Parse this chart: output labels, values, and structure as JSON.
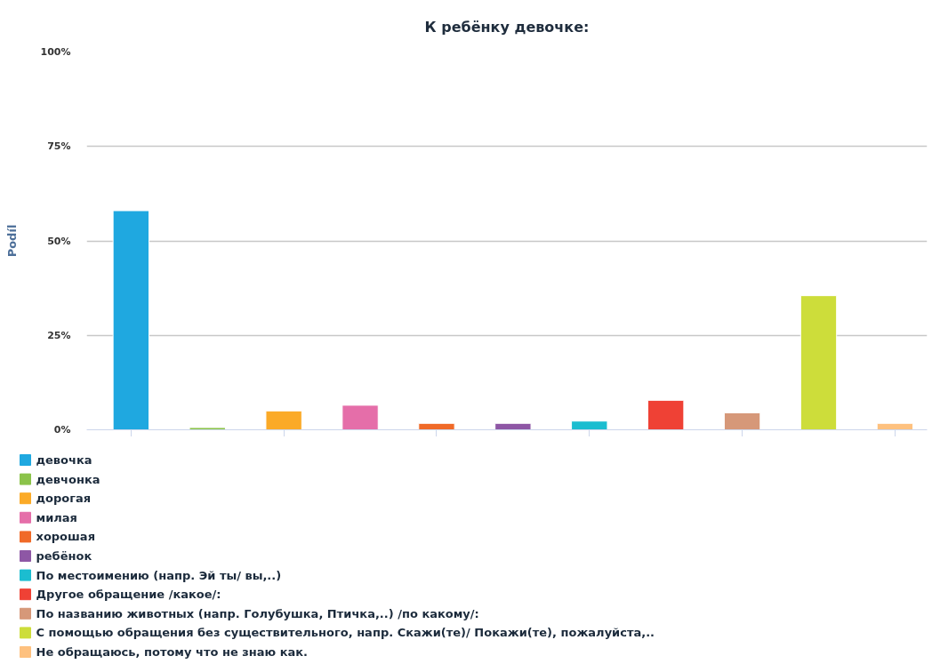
{
  "chart_data": {
    "type": "bar",
    "title": "К ребёнку девочке:",
    "ylabel": "Podíl",
    "categories": [
      null,
      null,
      null,
      null,
      null,
      null,
      null,
      null,
      null,
      null,
      null
    ],
    "ylim": [
      0,
      100
    ],
    "yticks": [
      {
        "value": 0,
        "label": "0%"
      },
      {
        "value": 25,
        "label": "25%"
      },
      {
        "value": 50,
        "label": "50%"
      },
      {
        "value": 75,
        "label": "75%"
      },
      {
        "value": 100,
        "label": "100%"
      }
    ],
    "grid": "y",
    "legend": "bottom",
    "tick_labels": "y",
    "series": [
      {
        "name": "девочка",
        "color": "#1fa8e0",
        "values": [
          58,
          null,
          null,
          null,
          null,
          null,
          null,
          null,
          null,
          null,
          null
        ]
      },
      {
        "name": "девчонка",
        "color": "#8bc34a",
        "values": [
          null,
          0.6,
          null,
          null,
          null,
          null,
          null,
          null,
          null,
          null,
          null
        ]
      },
      {
        "name": "дорогая",
        "color": "#fbaa27",
        "values": [
          null,
          null,
          5,
          null,
          null,
          null,
          null,
          null,
          null,
          null,
          null
        ]
      },
      {
        "name": "милая",
        "color": "#e56ea9",
        "values": [
          null,
          null,
          null,
          6.5,
          null,
          null,
          null,
          null,
          null,
          null,
          null
        ]
      },
      {
        "name": "хорошая",
        "color": "#f06a28",
        "values": [
          null,
          null,
          null,
          null,
          1.7,
          null,
          null,
          null,
          null,
          null,
          null
        ]
      },
      {
        "name": "ребёнок",
        "color": "#8e57a5",
        "values": [
          null,
          null,
          null,
          null,
          null,
          1.7,
          null,
          null,
          null,
          null,
          null
        ]
      },
      {
        "name": "По местоимению (напр. Эй ты/ вы,..)",
        "color": "#1bbdd0",
        "values": [
          null,
          null,
          null,
          null,
          null,
          null,
          2.3,
          null,
          null,
          null,
          null
        ]
      },
      {
        "name": "Другое обращение /какое/:",
        "color": "#ef4135",
        "values": [
          null,
          null,
          null,
          null,
          null,
          null,
          null,
          7.8,
          null,
          null,
          null
        ]
      },
      {
        "name": "По названию животных (напр. Голубушка, Птичка,..) /по какому/:",
        "color": "#d69879",
        "values": [
          null,
          null,
          null,
          null,
          null,
          null,
          null,
          null,
          4.5,
          null,
          null
        ]
      },
      {
        "name": "С помощью обращения без существительного, напр. Скажи(те)/ Покажи(те), пожалуйста,..",
        "color": "#cddd3a",
        "values": [
          null,
          null,
          null,
          null,
          null,
          null,
          null,
          null,
          null,
          35.5,
          null
        ]
      },
      {
        "name": "Не обращаюсь, потому что не знаю как.",
        "color": "#fec17f",
        "values": [
          null,
          null,
          null,
          null,
          null,
          null,
          null,
          null,
          null,
          null,
          1.7
        ]
      }
    ]
  }
}
